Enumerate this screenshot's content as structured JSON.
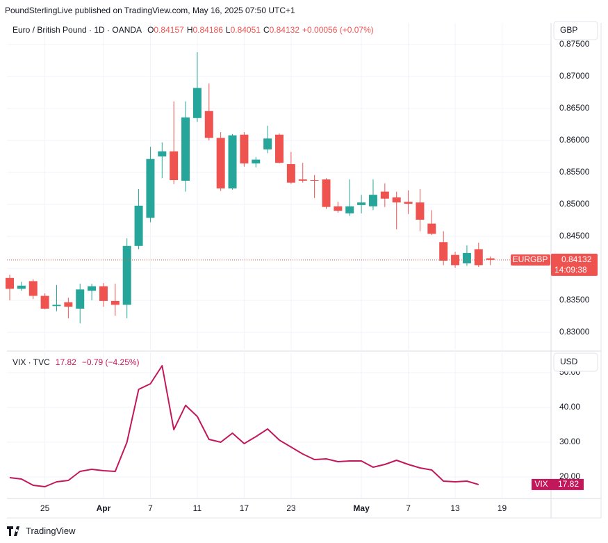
{
  "header": {
    "title": "PoundSterlingLive published on TradingView.com, May 16, 2025 07:50 UTC+1"
  },
  "chart_data": [
    {
      "type": "candlestick",
      "title": "Euro / British Pound · 1D · OANDA",
      "legend_labels": [
        "O",
        "H",
        "L",
        "C"
      ],
      "change": "+0.00056 (+0.07%)",
      "currency": "GBP",
      "symbol": "EURGBP",
      "countdown": "14:09:38",
      "up_color": "#26a69a",
      "down_color": "#ef5350",
      "open": [
        0.8385,
        0.8368,
        0.838,
        0.8357,
        0.8341,
        0.8347,
        0.8337,
        0.8365,
        0.8372,
        0.8349,
        0.8343,
        0.8435,
        0.8479,
        0.8575,
        0.8583,
        0.8537,
        0.8635,
        0.8646,
        0.8604,
        0.8525,
        0.8609,
        0.8564,
        0.8586,
        0.8609,
        0.8563,
        0.8539,
        0.8538,
        0.8539,
        0.8497,
        0.8486,
        0.8499,
        0.8497,
        0.852,
        0.8511,
        0.8504,
        0.8503,
        0.847,
        0.8441,
        0.8421,
        0.8408,
        0.843,
        0.84157,
        null
      ],
      "high": [
        0.839,
        0.8379,
        0.8383,
        0.8361,
        0.8374,
        0.8354,
        0.8376,
        0.8376,
        0.8377,
        0.8376,
        0.8447,
        0.8524,
        0.859,
        0.8597,
        0.8661,
        0.8661,
        0.8738,
        0.8689,
        0.8613,
        0.861,
        0.8613,
        0.8574,
        0.8623,
        0.8611,
        0.8582,
        0.8565,
        0.8546,
        0.8541,
        0.8504,
        0.8539,
        0.8515,
        0.8539,
        0.8533,
        0.852,
        0.8522,
        0.8524,
        0.8491,
        0.8458,
        0.8426,
        0.8436,
        0.844,
        0.84186,
        null
      ],
      "low": [
        0.835,
        0.8365,
        0.8352,
        0.8336,
        0.8333,
        0.8322,
        0.8314,
        0.835,
        0.834,
        0.8326,
        0.8322,
        0.843,
        0.8472,
        0.8541,
        0.8532,
        0.852,
        0.8629,
        0.86,
        0.8521,
        0.8523,
        0.8559,
        0.8558,
        0.858,
        0.8564,
        0.8532,
        0.8534,
        0.851,
        0.8493,
        0.8487,
        0.8482,
        0.8486,
        0.8491,
        0.8496,
        0.8461,
        0.8485,
        0.8458,
        0.8452,
        0.8405,
        0.8401,
        0.8404,
        0.8402,
        0.84051,
        null
      ],
      "close": [
        0.8368,
        0.8373,
        0.8357,
        0.8337,
        0.8343,
        0.834,
        0.8367,
        0.8372,
        0.8349,
        0.8343,
        0.8435,
        0.8498,
        0.8571,
        0.8583,
        0.8538,
        0.8636,
        0.8682,
        0.8604,
        0.8525,
        0.8608,
        0.8564,
        0.857,
        0.8603,
        0.8565,
        0.8534,
        0.8537,
        0.8537,
        0.8496,
        0.849,
        0.8497,
        0.8503,
        0.8515,
        0.8509,
        0.8503,
        0.8501,
        0.8476,
        0.8454,
        0.8412,
        0.8405,
        0.8424,
        0.8405,
        0.84132,
        null
      ],
      "ylim": [
        0.82728,
        0.87837
      ],
      "yticks": [
        {
          "value": 0.83,
          "label": "0.83000"
        },
        {
          "value": 0.835,
          "label": "0.83500"
        },
        {
          "value": 0.84,
          "label": "0.84000"
        },
        {
          "value": 0.845,
          "label": "0.84500"
        },
        {
          "value": 0.85,
          "label": "0.85000"
        },
        {
          "value": 0.855,
          "label": "0.85500"
        },
        {
          "value": 0.86,
          "label": "0.86000"
        },
        {
          "value": 0.865,
          "label": "0.86500"
        },
        {
          "value": 0.87,
          "label": "0.87000"
        },
        {
          "value": 0.875,
          "label": "0.87500"
        }
      ],
      "grid": true
    },
    {
      "type": "line",
      "title": "VIX · TVC",
      "change": "−0.79 (−4.25%)",
      "currency": "USD",
      "categories": [
        null,
        null,
        null,
        "25",
        null,
        null,
        null,
        null,
        "Apr",
        null,
        null,
        null,
        "7",
        null,
        null,
        null,
        "11",
        null,
        null,
        null,
        "17",
        null,
        null,
        null,
        "23",
        null,
        null,
        null,
        null,
        null,
        "May",
        null,
        null,
        null,
        "7",
        null,
        null,
        null,
        "13",
        null,
        null,
        null,
        "19"
      ],
      "series": [
        {
          "name": "VIX",
          "color": "#c2185b",
          "values": [
            19.8,
            19.4,
            17.6,
            17.2,
            18.6,
            19.0,
            21.6,
            22.2,
            21.8,
            21.6,
            30.0,
            45.2,
            46.8,
            52.0,
            33.6,
            40.6,
            37.4,
            30.8,
            30.0,
            32.6,
            29.6,
            31.6,
            33.8,
            30.6,
            28.6,
            26.6,
            25.0,
            25.2,
            24.4,
            24.6,
            24.6,
            22.8,
            23.6,
            24.8,
            23.6,
            22.6,
            22.0,
            18.8,
            18.6,
            18.8,
            17.82,
            null,
            null
          ]
        }
      ],
      "ylim": [
        13.8,
        55.8
      ],
      "yticks": [
        {
          "value": 20,
          "label": "20.00"
        },
        {
          "value": 30,
          "label": "30.00"
        },
        {
          "value": 40,
          "label": "40.00"
        },
        {
          "value": 50,
          "label": "50.00"
        }
      ],
      "grid": true
    }
  ],
  "footer": {
    "brand": "TradingView"
  }
}
